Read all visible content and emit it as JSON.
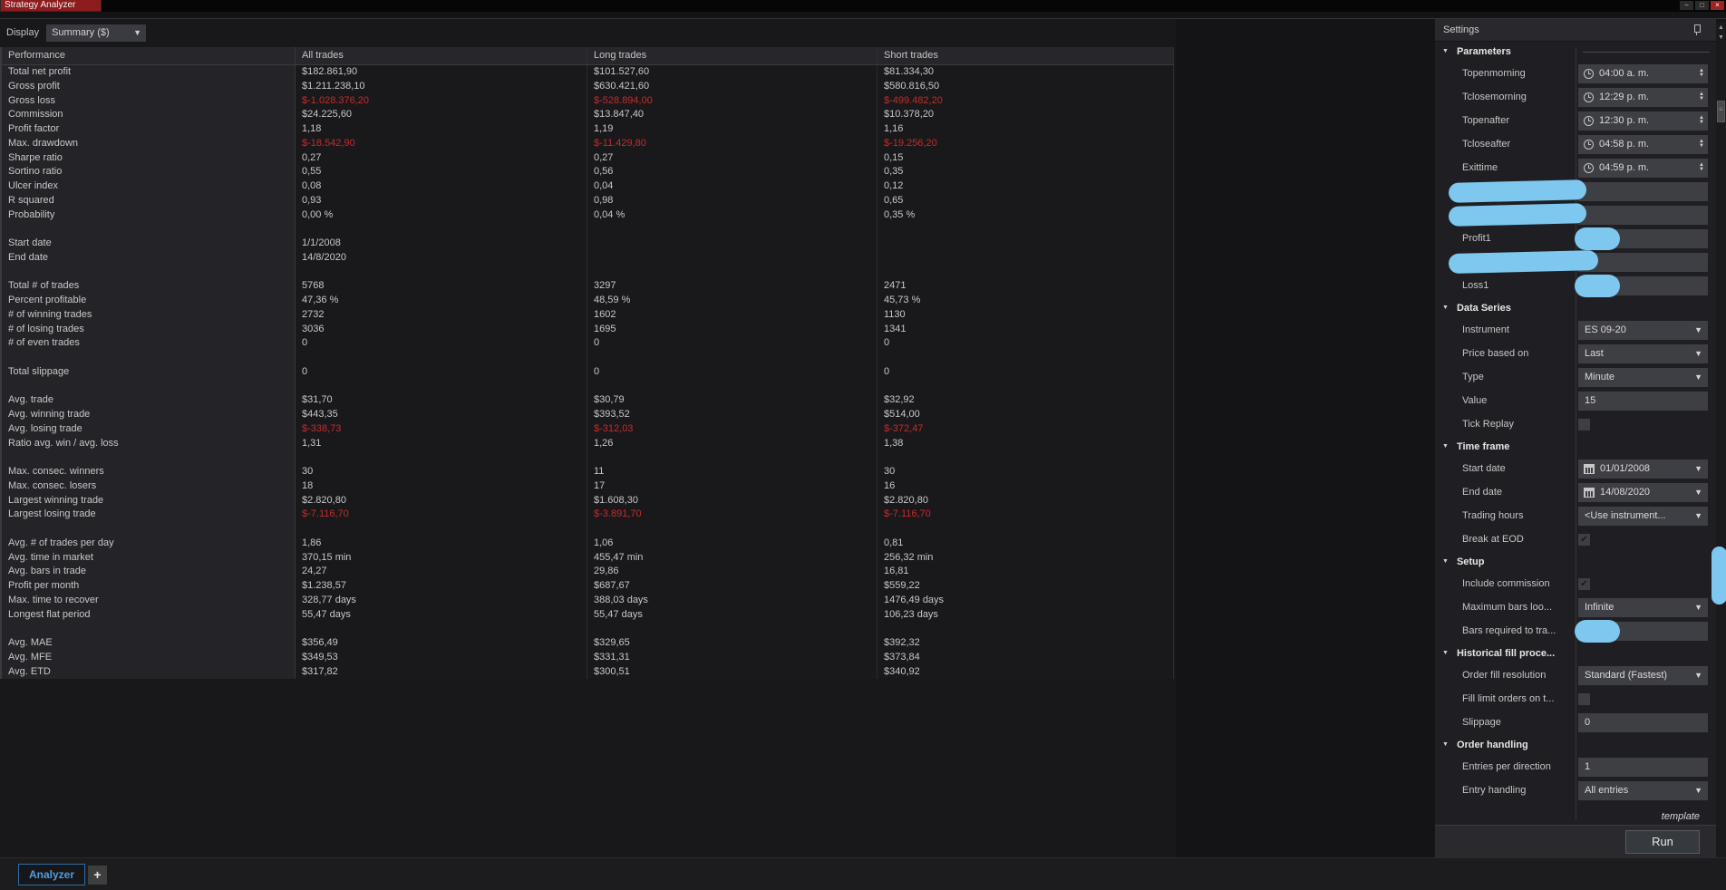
{
  "window": {
    "title": "Strategy Analyzer",
    "controls": {
      "minimize": "−",
      "restore": "□",
      "close": "×"
    }
  },
  "display": {
    "label": "Display",
    "value": "Summary ($)"
  },
  "table": {
    "headers": [
      "Performance",
      "All trades",
      "Long trades",
      "Short trades"
    ],
    "rows": [
      {
        "label": "Total net profit",
        "values": [
          "$182.861,90",
          "$101.527,60",
          "$81.334,30"
        ],
        "neg": false
      },
      {
        "label": "Gross profit",
        "values": [
          "$1.211.238,10",
          "$630.421,60",
          "$580.816,50"
        ],
        "neg": false
      },
      {
        "label": "Gross loss",
        "values": [
          "$-1.028.376,20",
          "$-528.894,00",
          "$-499.482,20"
        ],
        "neg": true
      },
      {
        "label": "Commission",
        "values": [
          "$24.225,60",
          "$13.847,40",
          "$10.378,20"
        ],
        "neg": false
      },
      {
        "label": "Profit factor",
        "values": [
          "1,18",
          "1,19",
          "1,16"
        ],
        "neg": false
      },
      {
        "label": "Max. drawdown",
        "values": [
          "$-18.542,90",
          "$-11.429,80",
          "$-19.256,20"
        ],
        "neg": true
      },
      {
        "label": "Sharpe ratio",
        "values": [
          "0,27",
          "0,27",
          "0,15"
        ],
        "neg": false
      },
      {
        "label": "Sortino ratio",
        "values": [
          "0,55",
          "0,56",
          "0,35"
        ],
        "neg": false
      },
      {
        "label": "Ulcer index",
        "values": [
          "0,08",
          "0,04",
          "0,12"
        ],
        "neg": false
      },
      {
        "label": "R squared",
        "values": [
          "0,93",
          "0,98",
          "0,65"
        ],
        "neg": false
      },
      {
        "label": "Probability",
        "values": [
          "0,00 %",
          "0,04 %",
          "0,35 %"
        ],
        "neg": false
      },
      {
        "blank": true
      },
      {
        "label": "Start date",
        "values": [
          "1/1/2008",
          "",
          ""
        ],
        "neg": false
      },
      {
        "label": "End date",
        "values": [
          "14/8/2020",
          "",
          ""
        ],
        "neg": false
      },
      {
        "blank": true
      },
      {
        "label": "Total # of trades",
        "values": [
          "5768",
          "3297",
          "2471"
        ],
        "neg": false
      },
      {
        "label": "Percent profitable",
        "values": [
          "47,36 %",
          "48,59 %",
          "45,73 %"
        ],
        "neg": false
      },
      {
        "label": "# of winning trades",
        "values": [
          "2732",
          "1602",
          "1130"
        ],
        "neg": false
      },
      {
        "label": "# of losing trades",
        "values": [
          "3036",
          "1695",
          "1341"
        ],
        "neg": false
      },
      {
        "label": "# of even trades",
        "values": [
          "0",
          "0",
          "0"
        ],
        "neg": false
      },
      {
        "blank": true
      },
      {
        "label": "Total slippage",
        "values": [
          "0",
          "0",
          "0"
        ],
        "neg": false
      },
      {
        "blank": true
      },
      {
        "label": "Avg. trade",
        "values": [
          "$31,70",
          "$30,79",
          "$32,92"
        ],
        "neg": false
      },
      {
        "label": "Avg. winning trade",
        "values": [
          "$443,35",
          "$393,52",
          "$514,00"
        ],
        "neg": false
      },
      {
        "label": "Avg. losing trade",
        "values": [
          "$-338,73",
          "$-312,03",
          "$-372,47"
        ],
        "neg": true
      },
      {
        "label": "Ratio avg. win / avg. loss",
        "values": [
          "1,31",
          "1,26",
          "1,38"
        ],
        "neg": false
      },
      {
        "blank": true
      },
      {
        "label": "Max. consec. winners",
        "values": [
          "30",
          "11",
          "30"
        ],
        "neg": false
      },
      {
        "label": "Max. consec. losers",
        "values": [
          "18",
          "17",
          "16"
        ],
        "neg": false
      },
      {
        "label": "Largest winning trade",
        "values": [
          "$2.820,80",
          "$1.608,30",
          "$2.820,80"
        ],
        "neg": false
      },
      {
        "label": "Largest losing trade",
        "values": [
          "$-7.116,70",
          "$-3.891,70",
          "$-7.116,70"
        ],
        "neg": true
      },
      {
        "blank": true
      },
      {
        "label": "Avg. # of trades per day",
        "values": [
          "1,86",
          "1,06",
          "0,81"
        ],
        "neg": false
      },
      {
        "label": "Avg. time in market",
        "values": [
          "370,15 min",
          "455,47 min",
          "256,32 min"
        ],
        "neg": false
      },
      {
        "label": "Avg. bars in trade",
        "values": [
          "24,27",
          "29,86",
          "16,81"
        ],
        "neg": false
      },
      {
        "label": "Profit per month",
        "values": [
          "$1.238,57",
          "$687,67",
          "$559,22"
        ],
        "neg": false
      },
      {
        "label": "Max. time to recover",
        "values": [
          "328,77 days",
          "388,03 days",
          "1476,49 days"
        ],
        "neg": false
      },
      {
        "label": "Longest flat period",
        "values": [
          "55,47 days",
          "55,47 days",
          "106,23 days"
        ],
        "neg": false
      },
      {
        "blank": true
      },
      {
        "label": "Avg. MAE",
        "values": [
          "$356,49",
          "$329,65",
          "$392,32"
        ],
        "neg": false
      },
      {
        "label": "Avg. MFE",
        "values": [
          "$349,53",
          "$331,31",
          "$373,84"
        ],
        "neg": false
      },
      {
        "label": "Avg. ETD",
        "values": [
          "$317,82",
          "$300,51",
          "$340,92"
        ],
        "neg": false
      }
    ]
  },
  "settings": {
    "title": "Settings",
    "sections": [
      {
        "header": "Parameters",
        "rows": [
          {
            "type": "time",
            "label": "Topenmorning",
            "value": "04:00 a. m."
          },
          {
            "type": "time",
            "label": "Tclosemorning",
            "value": "12:29 p. m."
          },
          {
            "type": "time",
            "label": "Topenafter",
            "value": "12:30 p. m."
          },
          {
            "type": "time",
            "label": "Tcloseafter",
            "value": "04:58 p. m."
          },
          {
            "type": "time",
            "label": "Exittime",
            "value": "04:59 p. m."
          },
          {
            "type": "redacted-row"
          },
          {
            "type": "redacted-row"
          },
          {
            "type": "field-redacted",
            "label": "Profit1"
          },
          {
            "type": "redacted-row",
            "wide": true
          },
          {
            "type": "field-redacted",
            "label": "Loss1"
          }
        ]
      },
      {
        "header": "Data Series",
        "rows": [
          {
            "type": "select",
            "label": "Instrument",
            "value": "ES 09-20"
          },
          {
            "type": "select",
            "label": "Price based on",
            "value": "Last"
          },
          {
            "type": "select",
            "label": "Type",
            "value": "Minute"
          },
          {
            "type": "field",
            "label": "Value",
            "value": "15"
          },
          {
            "type": "checkbox",
            "label": "Tick Replay",
            "checked": false
          }
        ]
      },
      {
        "header": "Time frame",
        "rows": [
          {
            "type": "date",
            "label": "Start date",
            "value": "01/01/2008"
          },
          {
            "type": "date",
            "label": "End date",
            "value": "14/08/2020"
          },
          {
            "type": "select",
            "label": "Trading hours",
            "value": "<Use instrument..."
          },
          {
            "type": "checkbox",
            "label": "Break at EOD",
            "checked": true
          }
        ]
      },
      {
        "header": "Setup",
        "rows": [
          {
            "type": "checkbox",
            "label": "Include commission",
            "checked": true
          },
          {
            "type": "select",
            "label": "Maximum bars loo...",
            "value": "Infinite"
          },
          {
            "type": "field-redacted",
            "label": "Bars required to tra..."
          }
        ]
      },
      {
        "header": "Historical fill proce...",
        "rows": [
          {
            "type": "select",
            "label": "Order fill resolution",
            "value": "Standard (Fastest)"
          },
          {
            "type": "checkbox",
            "label": "Fill limit orders on t...",
            "checked": false
          },
          {
            "type": "field",
            "label": "Slippage",
            "value": "0"
          }
        ]
      },
      {
        "header": "Order handling",
        "rows": [
          {
            "type": "field",
            "label": "Entries per direction",
            "value": "1"
          },
          {
            "type": "select",
            "label": "Entry handling",
            "value": "All entries"
          }
        ]
      }
    ],
    "template_link": "template",
    "run_button": "Run"
  },
  "tabs": {
    "analyzer": "Analyzer",
    "add": "+"
  },
  "colors": {
    "title_tab": "#8e1c1c",
    "negative_value": "#c52b2b",
    "redaction": "#7ec7ef",
    "tab_accent": "#4f9edb",
    "field_bg": "#3e3e45"
  }
}
